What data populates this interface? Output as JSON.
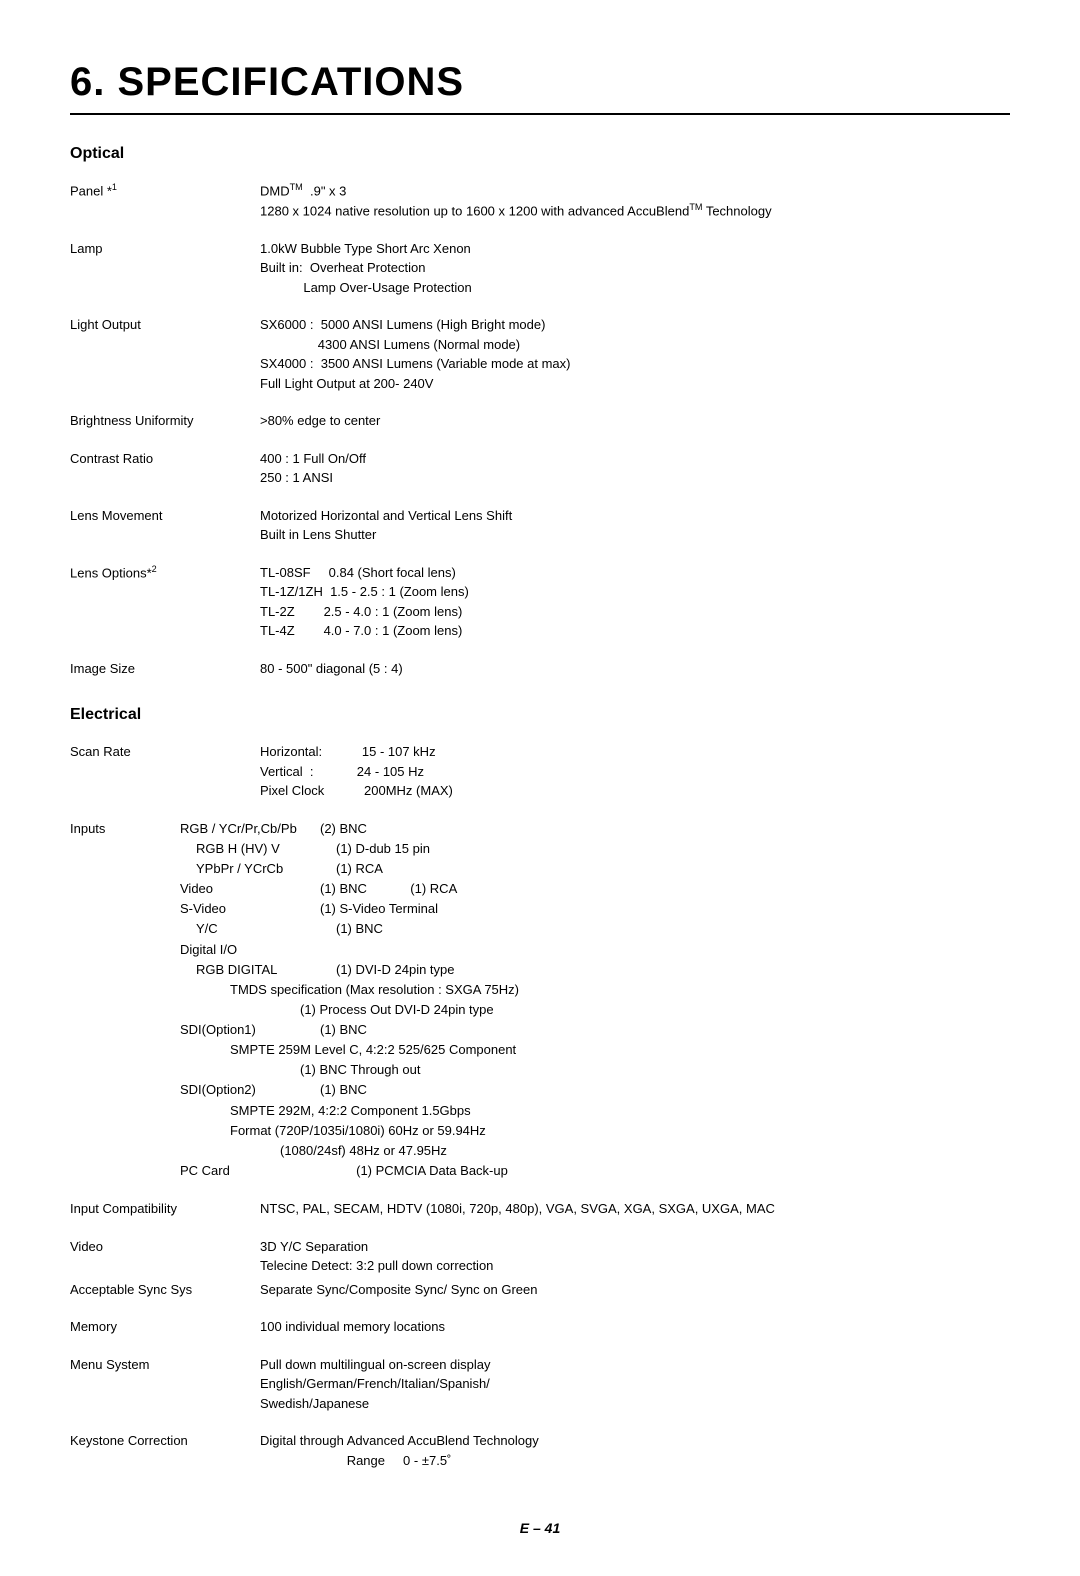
{
  "chapter_title": "6. SPECIFICATIONS",
  "sections": {
    "optical": {
      "title": "Optical",
      "rows": {
        "panel": {
          "label_html": "Panel *<sup>1</sup>",
          "value_html": "DMD<sup>TM</sup>  .9\" x 3\n1280 x 1024 native resolution up to 1600 x 1200 with advanced AccuBlend<sup>TM</sup> Technology"
        },
        "lamp": {
          "label": "Lamp",
          "value": "1.0kW Bubble Type Short Arc Xenon\nBuilt in:  Overheat Protection\n            Lamp Over-Usage Protection"
        },
        "light_output": {
          "label": "Light Output",
          "value": "SX6000 :  5000 ANSI Lumens (High Bright mode)\n                4300 ANSI Lumens (Normal mode)\nSX4000 :  3500 ANSI Lumens (Variable mode at max)\nFull Light Output at 200- 240V"
        },
        "brightness_uniformity": {
          "label": "Brightness Uniformity",
          "value": ">80% edge to center"
        },
        "contrast_ratio": {
          "label": "Contrast Ratio",
          "value": "400 : 1 Full On/Off\n250 : 1 ANSI"
        },
        "lens_movement": {
          "label": "Lens Movement",
          "value": "Motorized Horizontal and Vertical Lens Shift\nBuilt in Lens Shutter"
        },
        "lens_options": {
          "label_html": "Lens Options*<sup>2</sup>",
          "value": "TL-08SF     0.84 (Short focal lens)\nTL-1Z/1ZH  1.5 - 2.5 : 1 (Zoom lens)\nTL-2Z        2.5 - 4.0 : 1 (Zoom lens)\nTL-4Z        4.0 - 7.0 : 1 (Zoom lens)"
        },
        "image_size": {
          "label": "Image Size",
          "value": "80 - 500\" diagonal (5 : 4)"
        }
      }
    },
    "electrical": {
      "title": "Electrical",
      "rows": {
        "scan_rate": {
          "label": "Scan Rate",
          "value": "Horizontal:           15 - 107 kHz\nVertical  :            24 - 105 Hz\nPixel Clock           200MHz (MAX)"
        },
        "input_compatibility": {
          "label": "Input Compatibility",
          "value": "NTSC, PAL, SECAM, HDTV (1080i, 720p, 480p), VGA, SVGA, XGA, SXGA, UXGA, MAC"
        },
        "video": {
          "label": "Video",
          "value": "3D Y/C Separation\nTelecine Detect: 3:2 pull down correction"
        },
        "acceptable_sync": {
          "label": "Acceptable Sync Sys",
          "value": "Separate Sync/Composite Sync/ Sync on Green"
        },
        "memory": {
          "label": "Memory",
          "value": "100 individual memory locations"
        },
        "menu_system": {
          "label": "Menu System",
          "value": "Pull down multilingual on-screen display\nEnglish/German/French/Italian/Spanish/\nSwedish/Japanese"
        },
        "keystone": {
          "label": "Keystone Correction",
          "value": "Digital through Advanced AccuBlend Technology\n                        Range     0 - ±7.5˚"
        }
      },
      "inputs": {
        "label": "Inputs",
        "lines": [
          {
            "c1": "",
            "c2": "RGB / YCr/Pr,Cb/Pb",
            "c3": "(2) BNC"
          },
          {
            "c1": "",
            "c2_indent": true,
            "c2": "RGB H (HV) V",
            "c3": "(1) D-dub 15 pin"
          },
          {
            "c1": "",
            "c2_indent": true,
            "c2": "YPbPr / YCrCb",
            "c3": "(1) RCA"
          },
          {
            "c1": "",
            "c2": "Video",
            "c3": "(1) BNC            (1) RCA"
          },
          {
            "c1": "",
            "c2": "S-Video",
            "c3": "(1) S-Video Terminal"
          },
          {
            "c1": "",
            "c2_indent": true,
            "c2": "Y/C",
            "c3": "(1) BNC"
          },
          {
            "c1": "",
            "c2": "Digital I/O",
            "c3": ""
          },
          {
            "c1": "",
            "c2_indent": true,
            "c2": "RGB DIGITAL",
            "c3": "(1) DVI-D 24pin type"
          },
          {
            "full": "TMDS specification (Max resolution : SXGA 75Hz)",
            "deep": true,
            "pad": 50
          },
          {
            "full": "(1) Process Out DVI-D 24pin type",
            "deep": true,
            "pad": 120
          },
          {
            "c1": "",
            "c2": "SDI(Option1)",
            "c3": "(1) BNC"
          },
          {
            "full": "SMPTE 259M Level C, 4:2:2 525/625 Component",
            "deep": true,
            "pad": 50
          },
          {
            "full": "(1) BNC Through out",
            "deep": true,
            "pad": 120
          },
          {
            "c1": "",
            "c2": "SDI(Option2)",
            "c3": "(1) BNC"
          },
          {
            "full": "SMPTE 292M, 4:2:2 Component 1.5Gbps",
            "deep": true,
            "pad": 50
          },
          {
            "full": "Format (720P/1035i/1080i) 60Hz or 59.94Hz",
            "deep": true,
            "pad": 50
          },
          {
            "full": "(1080/24sf) 48Hz or 47.95Hz",
            "deep": true,
            "pad": 100
          },
          {
            "c1": "",
            "c2": "PC Card",
            "c3": "          (1) PCMCIA Data Back-up"
          }
        ]
      }
    }
  },
  "page_footer": "E – 41"
}
